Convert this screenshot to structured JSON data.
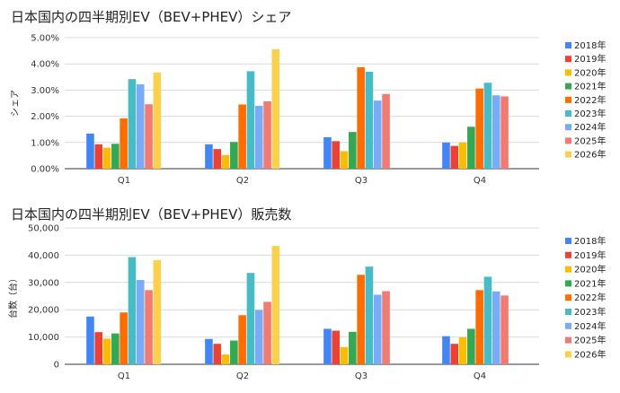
{
  "colors": [
    "#4285f4",
    "#ea4335",
    "#fbbc04",
    "#34a853",
    "#ff6d01",
    "#46bdc6",
    "#7baaf7",
    "#f07b72",
    "#fcd04f"
  ],
  "chart_data": [
    {
      "type": "bar",
      "title": "日本国内の四半期別EV（BEV+PHEV）シェア",
      "xlabel": "",
      "ylabel": "シェア",
      "ylim": [
        0,
        5
      ],
      "yticks": [
        "0.00%",
        "1.00%",
        "2.00%",
        "3.00%",
        "4.00%",
        "5.00%"
      ],
      "categories": [
        "Q1",
        "Q2",
        "Q3",
        "Q4"
      ],
      "legend_position": "right",
      "grid": true,
      "series": [
        {
          "name": "2018年",
          "values": [
            1.34,
            0.93,
            1.2,
            1.0
          ]
        },
        {
          "name": "2019年",
          "values": [
            0.93,
            0.75,
            1.05,
            0.87
          ]
        },
        {
          "name": "2020年",
          "values": [
            0.8,
            0.52,
            0.67,
            1.0
          ]
        },
        {
          "name": "2021年",
          "values": [
            0.95,
            1.02,
            1.4,
            1.6
          ]
        },
        {
          "name": "2022年",
          "values": [
            1.92,
            2.45,
            3.87,
            3.06
          ]
        },
        {
          "name": "2023年",
          "values": [
            3.42,
            3.72,
            3.7,
            3.28
          ]
        },
        {
          "name": "2024年",
          "values": [
            3.22,
            2.4,
            2.6,
            2.8
          ]
        },
        {
          "name": "2025年",
          "values": [
            2.46,
            2.57,
            2.85,
            2.76
          ]
        },
        {
          "name": "2026年",
          "values": [
            3.67,
            4.56,
            null,
            null
          ]
        }
      ]
    },
    {
      "type": "bar",
      "title": "日本国内の四半期別EV（BEV+PHEV）販売数",
      "xlabel": "",
      "ylabel": "台数（台）",
      "ylim": [
        0,
        50000
      ],
      "yticks": [
        "0",
        "10,000",
        "20,000",
        "30,000",
        "40,000",
        "50,000"
      ],
      "categories": [
        "Q1",
        "Q2",
        "Q3",
        "Q4"
      ],
      "legend_position": "right",
      "grid": true,
      "series": [
        {
          "name": "2018年",
          "values": [
            17500,
            9300,
            13000,
            10300
          ]
        },
        {
          "name": "2019年",
          "values": [
            11800,
            7500,
            12300,
            7500
          ]
        },
        {
          "name": "2020年",
          "values": [
            9400,
            3600,
            6300,
            9900
          ]
        },
        {
          "name": "2021年",
          "values": [
            11300,
            8700,
            11900,
            13000
          ]
        },
        {
          "name": "2022年",
          "values": [
            19000,
            18000,
            32800,
            27200
          ]
        },
        {
          "name": "2023年",
          "values": [
            39300,
            33500,
            35800,
            32100
          ]
        },
        {
          "name": "2024年",
          "values": [
            30900,
            19900,
            25500,
            26700
          ]
        },
        {
          "name": "2025年",
          "values": [
            27200,
            22900,
            26800,
            25200
          ]
        },
        {
          "name": "2026年",
          "values": [
            38200,
            43400,
            null,
            null
          ]
        }
      ]
    }
  ]
}
